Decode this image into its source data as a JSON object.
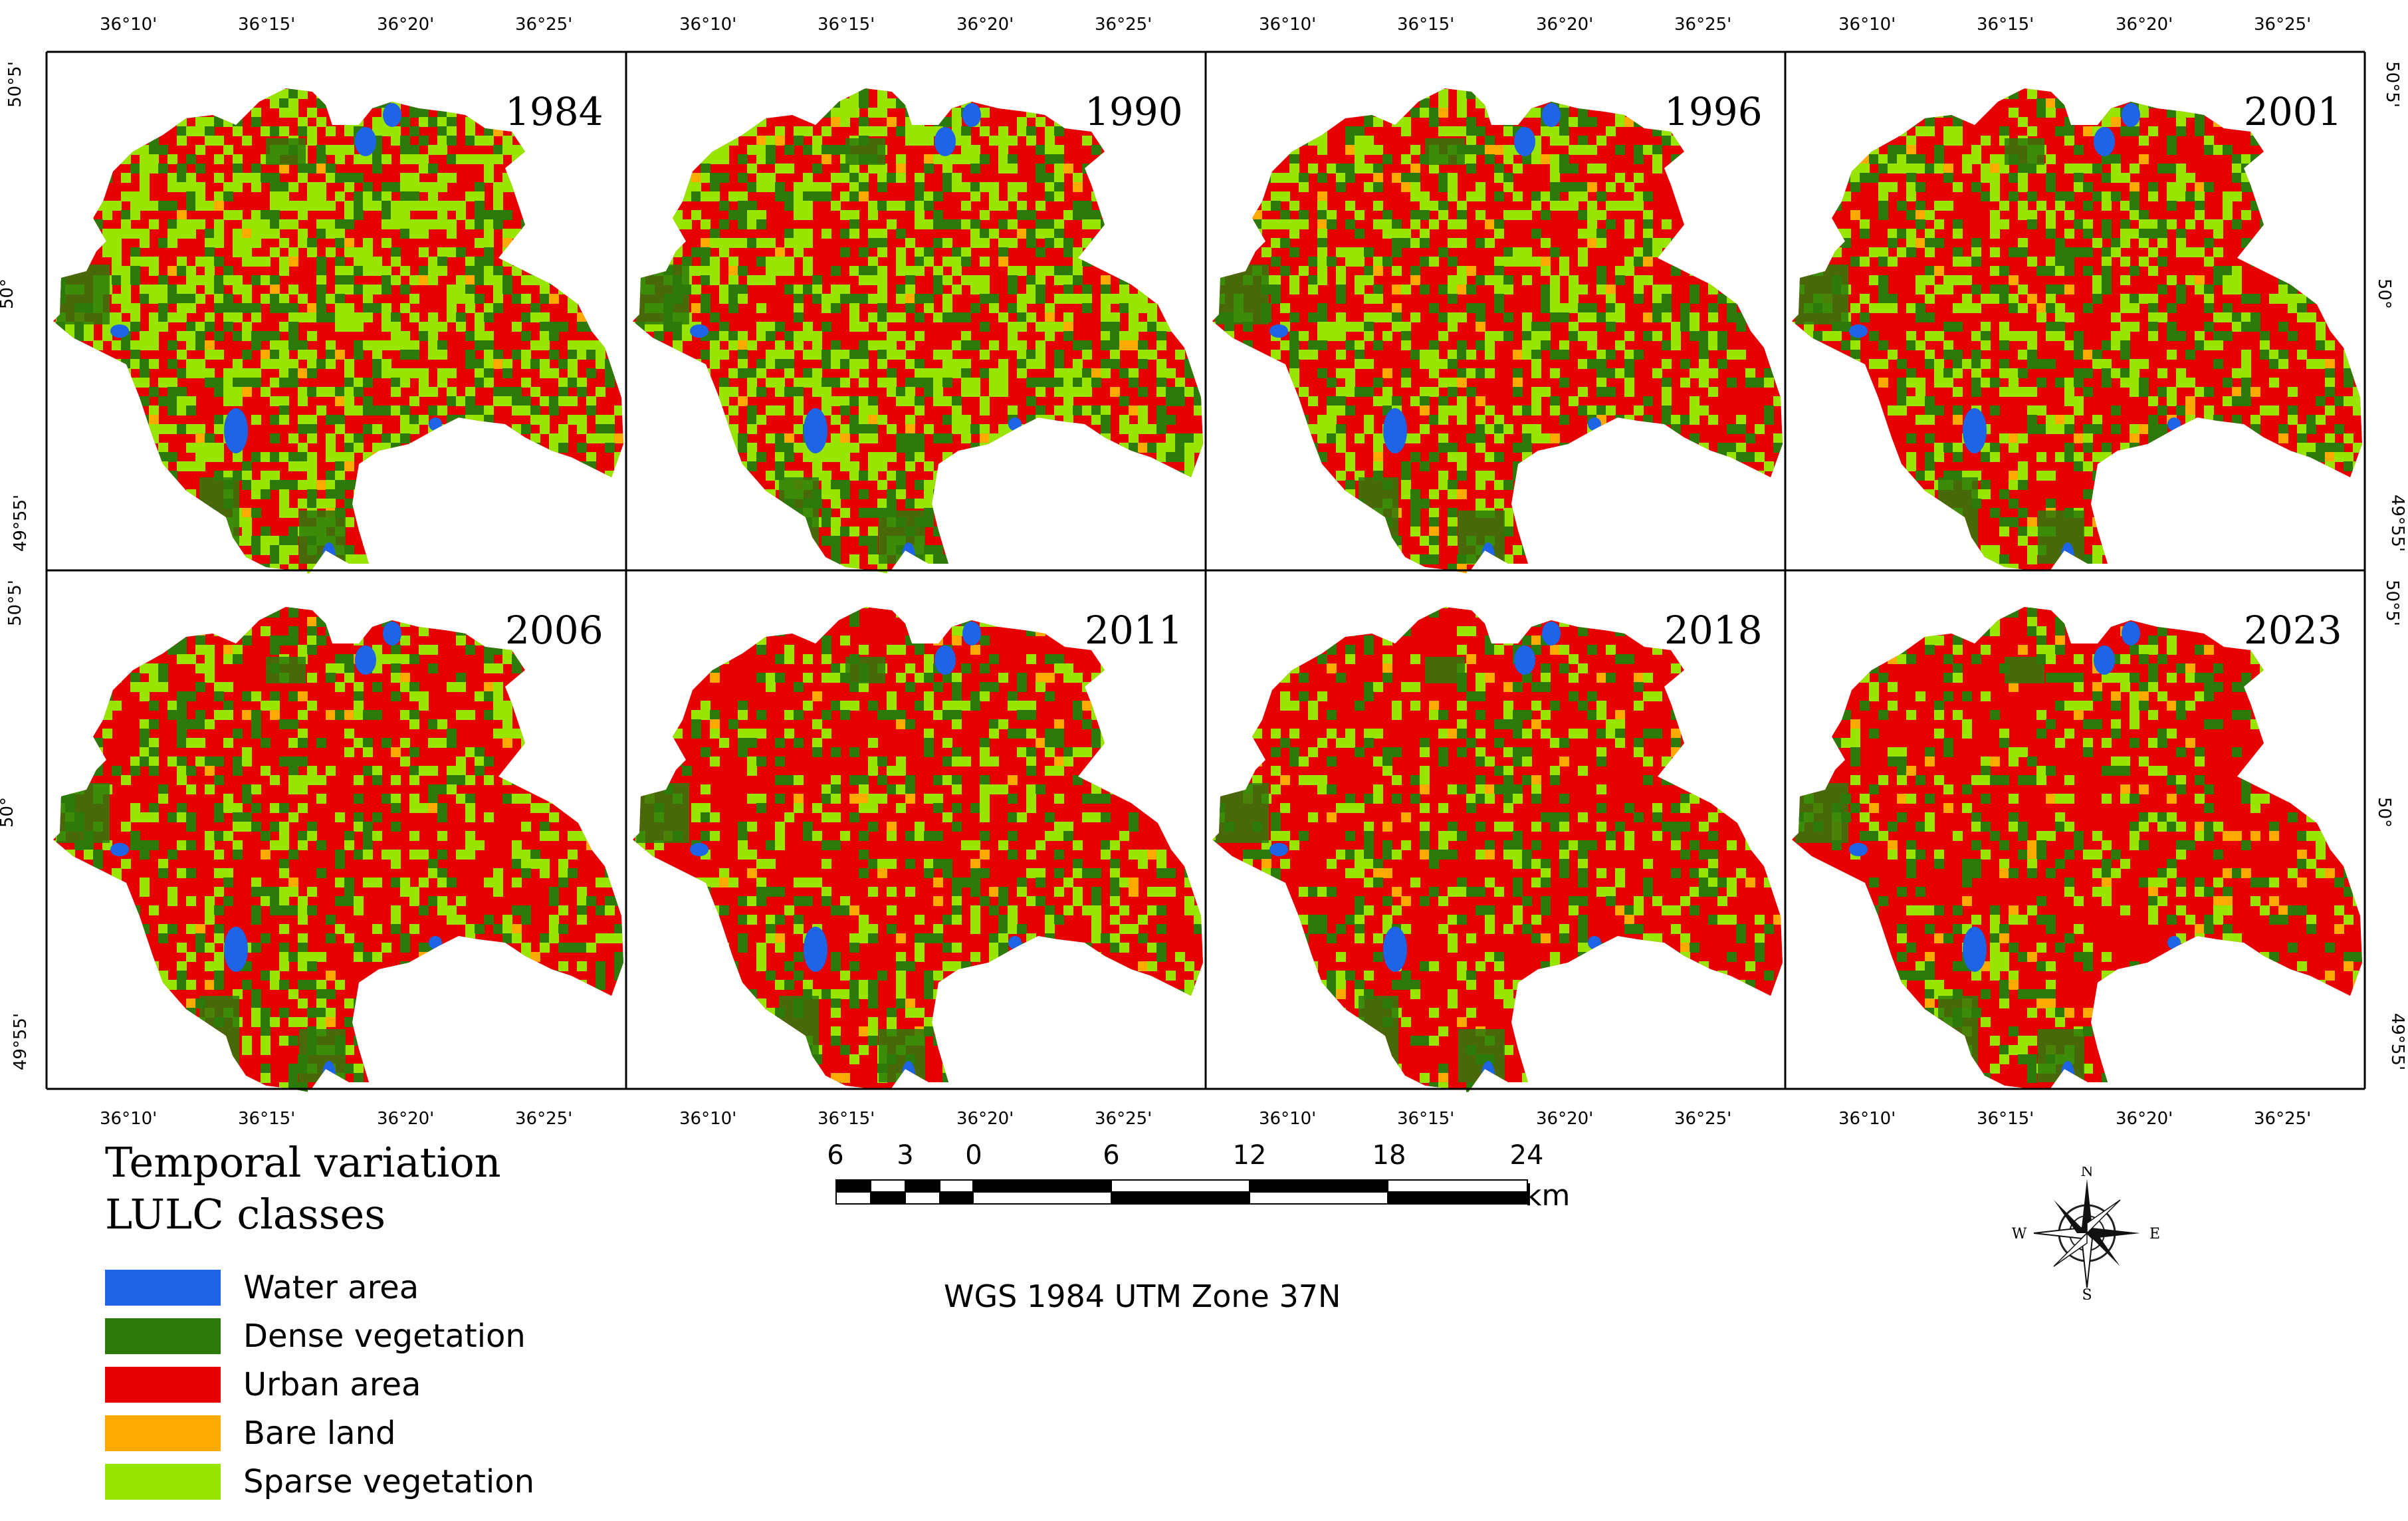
{
  "lon_ticks": [
    "36°10'",
    "36°15'",
    "36°20'",
    "36°25'"
  ],
  "lat_ticks": [
    "50°5'",
    "50°",
    "49°55'"
  ],
  "panels": [
    {
      "year": "1984",
      "urban": 0.42,
      "dense": 0.2,
      "sparse": 0.33,
      "bare": 0.015,
      "water": 0.02
    },
    {
      "year": "1990",
      "urban": 0.47,
      "dense": 0.18,
      "sparse": 0.31,
      "bare": 0.015,
      "water": 0.02
    },
    {
      "year": "1996",
      "urban": 0.55,
      "dense": 0.17,
      "sparse": 0.24,
      "bare": 0.02,
      "water": 0.02
    },
    {
      "year": "2001",
      "urban": 0.58,
      "dense": 0.16,
      "sparse": 0.22,
      "bare": 0.02,
      "water": 0.02
    },
    {
      "year": "2006",
      "urban": 0.63,
      "dense": 0.15,
      "sparse": 0.18,
      "bare": 0.02,
      "water": 0.02
    },
    {
      "year": "2011",
      "urban": 0.68,
      "dense": 0.13,
      "sparse": 0.15,
      "bare": 0.02,
      "water": 0.02
    },
    {
      "year": "2018",
      "urban": 0.7,
      "dense": 0.13,
      "sparse": 0.13,
      "bare": 0.02,
      "water": 0.02
    },
    {
      "year": "2023",
      "urban": 0.71,
      "dense": 0.12,
      "sparse": 0.12,
      "bare": 0.03,
      "water": 0.02
    }
  ],
  "legend": {
    "title_line1": "Temporal variation",
    "title_line2": "LULC classes",
    "items": [
      {
        "label": "Water area",
        "color": "#1e64e6"
      },
      {
        "label": "Dense vegetation",
        "color": "#2b7a0b"
      },
      {
        "label": "Urban area",
        "color": "#e60000"
      },
      {
        "label": "Bare land",
        "color": "#ffaa00"
      },
      {
        "label": "Sparse vegetation",
        "color": "#98e600"
      }
    ]
  },
  "scale_bar": {
    "labels": [
      "6",
      "3",
      "0",
      "6",
      "12",
      "18",
      "24"
    ],
    "unit": "km"
  },
  "north_arrow": {
    "n": "N",
    "e": "E",
    "s": "S",
    "w": "W"
  },
  "crs_label": "WGS 1984 UTM Zone 37N",
  "colors": {
    "water": "#1e64e6",
    "dense": "#2b7a0b",
    "urban": "#e60000",
    "bare": "#ffaa00",
    "sparse": "#98e600"
  }
}
